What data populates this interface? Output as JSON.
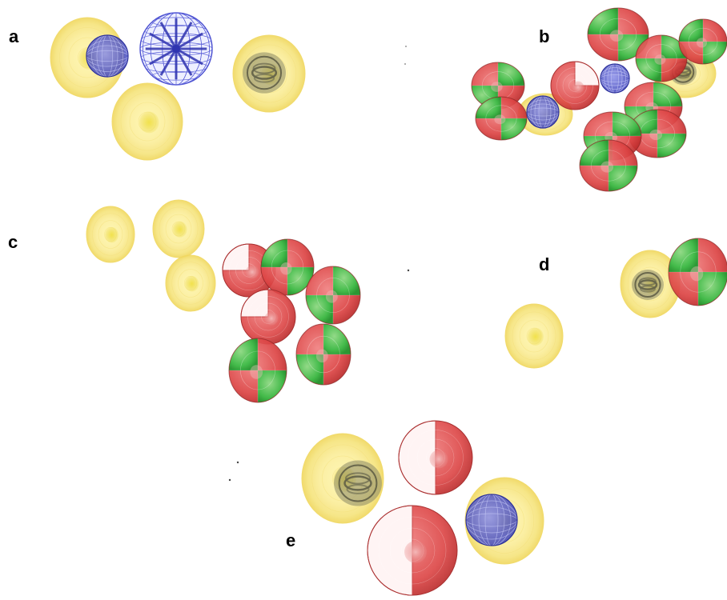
{
  "panels": [
    {
      "label": "a"
    },
    {
      "label": "b"
    },
    {
      "label": "c"
    },
    {
      "label": "d"
    },
    {
      "label": "e"
    }
  ],
  "colors": {
    "yellow_body": "#f5e488",
    "yellow_core": "#e8d640",
    "blue_mesh": "#3a3fb8",
    "red_shell": "#d83a3a",
    "green_shell": "#3cc04a",
    "grey_ring": "#6b6b5a"
  }
}
